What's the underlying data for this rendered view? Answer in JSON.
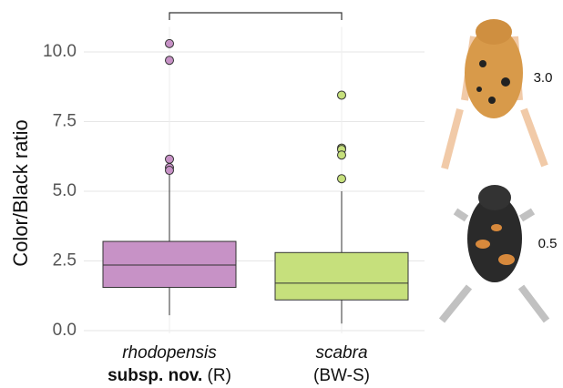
{
  "chart_data": {
    "type": "box",
    "y_label": "Color/Black ratio",
    "categories": [
      [
        "rhodopensis",
        "subsp. nov.",
        "(R)"
      ],
      [
        "scabra",
        "(BW-S)"
      ]
    ],
    "boxes": [
      {
        "color": "#c792c6",
        "whisker_low": 0.55,
        "q1": 1.55,
        "median": 2.35,
        "q3": 3.2,
        "whisker_high": 5.6,
        "outliers": [
          10.3,
          9.7,
          6.15,
          5.85,
          5.75
        ]
      },
      {
        "color": "#c6e07c",
        "whisker_low": 0.25,
        "q1": 1.1,
        "median": 1.7,
        "q3": 2.8,
        "whisker_high": 5.0,
        "outliers": [
          8.45,
          6.55,
          6.5,
          6.3,
          5.45
        ]
      }
    ],
    "ylim": [
      -0.1,
      10.9
    ],
    "yticks": [
      {
        "value": 0,
        "label": "0.0"
      },
      {
        "value": 2.5,
        "label": "2.5"
      },
      {
        "value": 5,
        "label": "5.0"
      },
      {
        "value": 7.5,
        "label": "7.5"
      },
      {
        "value": 10,
        "label": "10.0"
      }
    ],
    "grid": true,
    "annotations": [
      "3.0",
      "0.5"
    ]
  }
}
